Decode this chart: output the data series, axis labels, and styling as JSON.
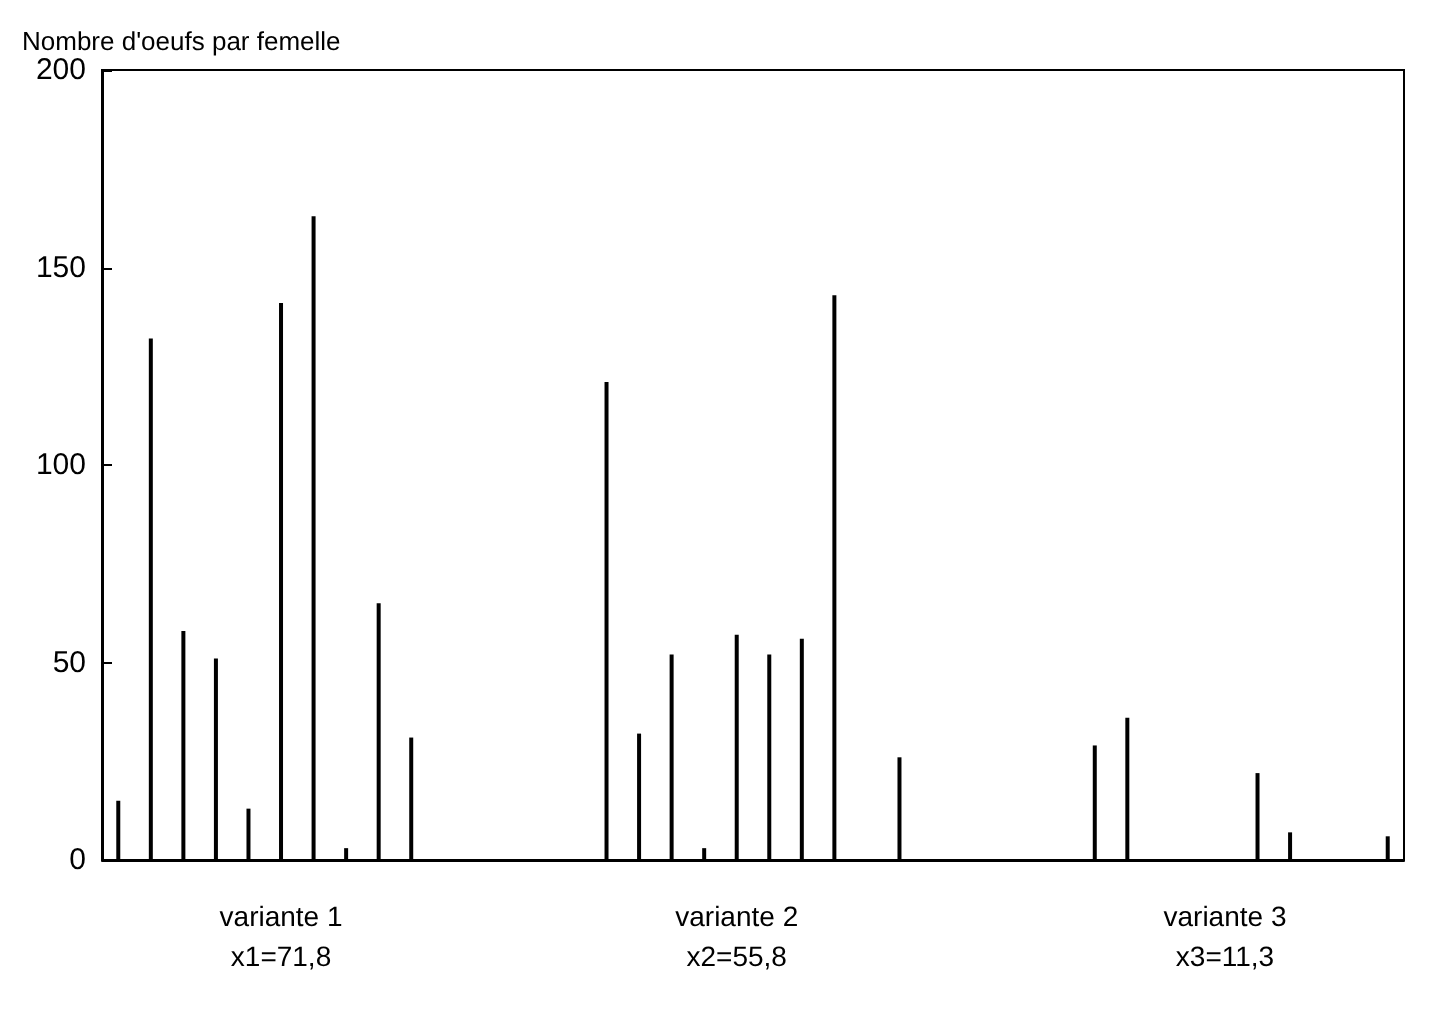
{
  "chart_data": {
    "type": "bar",
    "ylabel": "Nombre d'oeufs par femelle",
    "categories": [
      null,
      null,
      null,
      null,
      null,
      "variante 1\nx1=71,8",
      null,
      null,
      null,
      null,
      null,
      null,
      null,
      null,
      null,
      null,
      null,
      null,
      null,
      "variante 2\nx2=55,8",
      null,
      null,
      null,
      null,
      null,
      null,
      null,
      null,
      null,
      null,
      null,
      null,
      null,
      null,
      "variante 3\nx3=11,3",
      null,
      null,
      null,
      null,
      null
    ],
    "values": [
      15,
      132,
      58,
      51,
      13,
      141,
      163,
      3,
      65,
      31,
      0,
      0,
      0,
      0,
      0,
      121,
      32,
      52,
      3,
      57,
      52,
      56,
      143,
      0,
      26,
      0,
      0,
      0,
      0,
      0,
      29,
      36,
      0,
      0,
      0,
      22,
      7,
      0,
      0,
      6
    ],
    "color": "#000000",
    "ylim": [
      0,
      200
    ],
    "yticks": [
      0,
      50,
      100,
      150,
      200
    ],
    "grid": false
  }
}
